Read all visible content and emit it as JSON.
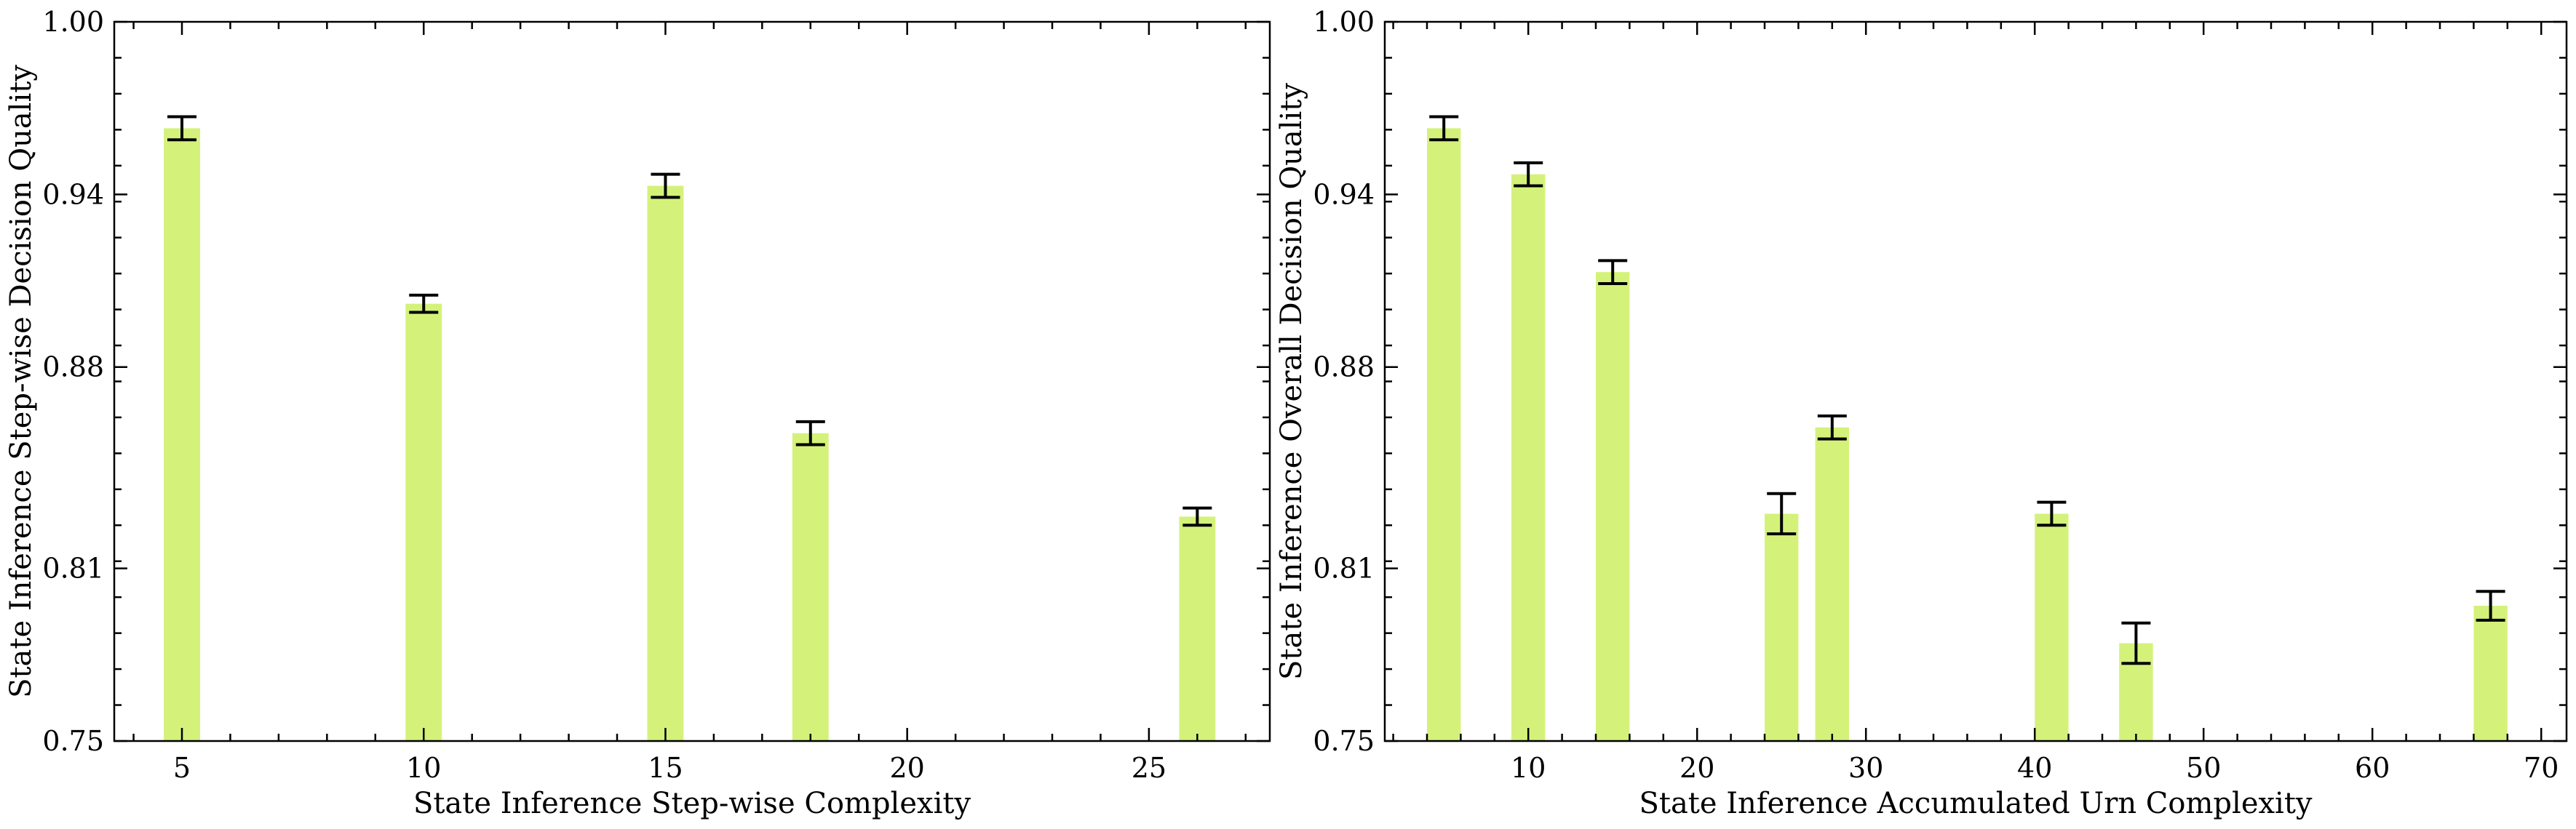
{
  "chart_data": [
    {
      "type": "bar",
      "xlabel": "State Inference Step-wise Complexity",
      "ylabel": "State Inference Step-wise Decision Quality",
      "xlim": [
        3.6,
        27.5
      ],
      "ylim": [
        0.75,
        1.0
      ],
      "xticks": [
        5,
        10,
        15,
        20,
        25
      ],
      "yticks": [
        0.75,
        0.81,
        0.88,
        0.94,
        1.0
      ],
      "ytick_labels": [
        "0.75",
        "0.81",
        "0.88",
        "0.94",
        "1.00"
      ],
      "bar_width": 0.75,
      "bar_color": "#d4f27a",
      "error_color": "#000000",
      "x": [
        5,
        10,
        15,
        18,
        26
      ],
      "values": [
        0.963,
        0.902,
        0.943,
        0.857,
        0.828
      ],
      "errors": [
        0.004,
        0.003,
        0.004,
        0.004,
        0.003
      ]
    },
    {
      "type": "bar",
      "xlabel": "State Inference Accumulated Urn Complexity",
      "ylabel": "State Inference Overall Decision Quality",
      "xlim": [
        1.5,
        71.5
      ],
      "ylim": [
        0.75,
        1.0
      ],
      "xticks": [
        10,
        20,
        30,
        40,
        50,
        60,
        70
      ],
      "yticks": [
        0.75,
        0.81,
        0.88,
        0.94,
        1.0
      ],
      "ytick_labels": [
        "0.75",
        "0.81",
        "0.88",
        "0.94",
        "1.00"
      ],
      "bar_width": 2.0,
      "bar_color": "#d4f27a",
      "error_color": "#000000",
      "x": [
        5,
        10,
        15,
        25,
        28,
        41,
        46,
        67
      ],
      "values": [
        0.963,
        0.947,
        0.913,
        0.829,
        0.859,
        0.829,
        0.784,
        0.797
      ],
      "errors": [
        0.004,
        0.004,
        0.004,
        0.007,
        0.004,
        0.004,
        0.007,
        0.005
      ]
    }
  ]
}
